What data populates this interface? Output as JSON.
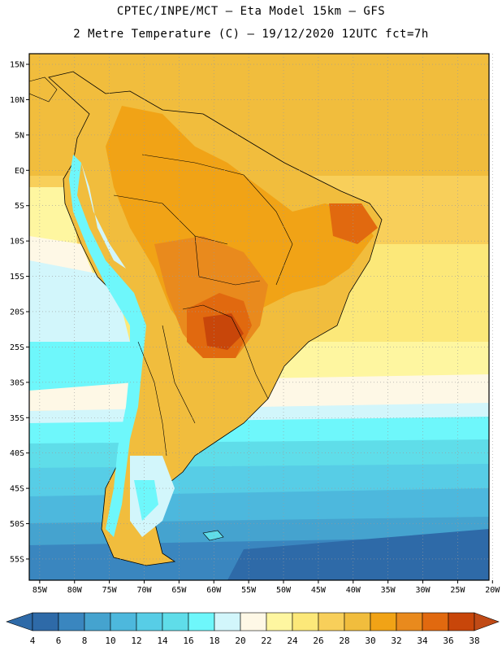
{
  "header": {
    "title_line1": "CPTEC/INPE/MCT –  Eta Model 15km – GFS",
    "title_line2": "2 Metre Temperature (C) – 19/12/2020 12UTC fct=7h"
  },
  "map": {
    "region": "South America",
    "lat_labels": [
      "15N",
      "10N",
      "5N",
      "EQ",
      "5S",
      "10S",
      "15S",
      "20S",
      "25S",
      "30S",
      "35S",
      "40S",
      "45S",
      "50S",
      "55S"
    ],
    "lon_labels": [
      "85W",
      "80W",
      "75W",
      "70W",
      "65W",
      "60W",
      "55W",
      "50W",
      "45W",
      "40W",
      "35W",
      "30W",
      "25W",
      "20W"
    ],
    "lat_values": [
      15,
      10,
      5,
      0,
      -5,
      -10,
      -15,
      -20,
      -25,
      -30,
      -35,
      -40,
      -45,
      -50,
      -55
    ],
    "lon_values": [
      -85,
      -80,
      -75,
      -70,
      -65,
      -60,
      -55,
      -50,
      -45,
      -40,
      -35,
      -30,
      -25,
      -20
    ],
    "lat_range": [
      -58,
      16.5
    ],
    "lon_range": [
      -86.5,
      -20.5
    ]
  },
  "colorbar": {
    "ticks": [
      "4",
      "6",
      "8",
      "10",
      "12",
      "14",
      "16",
      "18",
      "20",
      "22",
      "24",
      "26",
      "28",
      "30",
      "32",
      "34",
      "36",
      "38"
    ],
    "colors": [
      "#2e6aa8",
      "#3a86bf",
      "#45a3cf",
      "#4db8dd",
      "#57cde6",
      "#5fdde9",
      "#6ef7fb",
      "#d2f6fb",
      "#fef8e6",
      "#fef6a0",
      "#fce879",
      "#f8cf5a",
      "#f1bd3d",
      "#f1a316",
      "#e98a1d",
      "#e1690f",
      "#c8460a"
    ],
    "low_arrow_color": "#2e6aa8",
    "high_arrow_color": "#c04a16"
  }
}
